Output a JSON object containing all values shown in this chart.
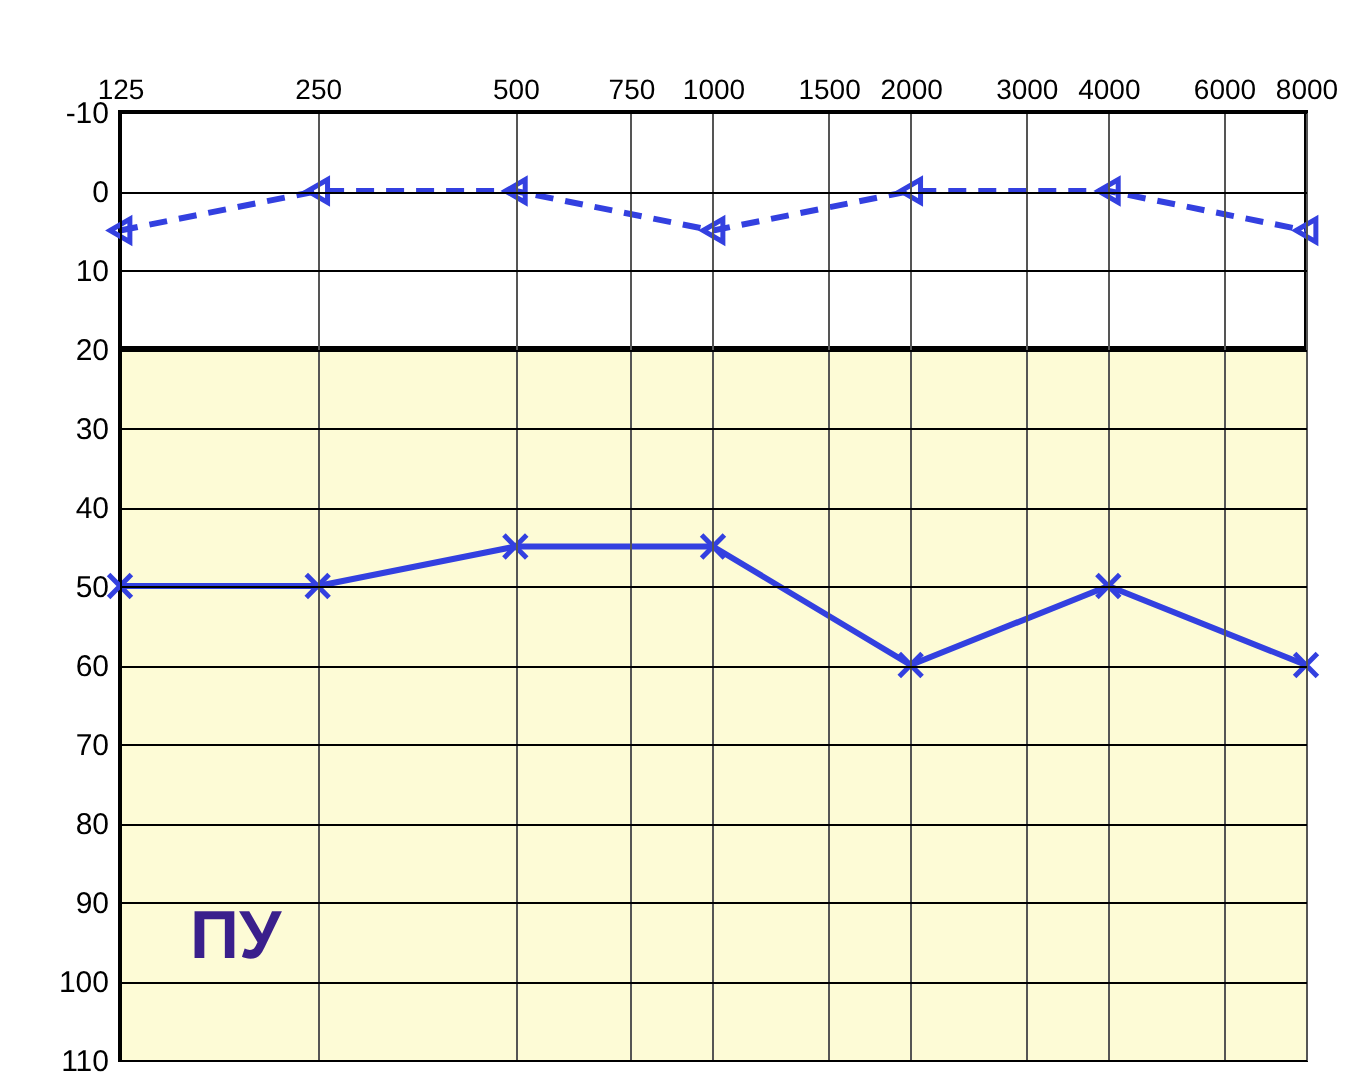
{
  "chart_data": {
    "type": "line",
    "log": "x",
    "xlim": [
      125,
      8000
    ],
    "xticks": [
      125,
      250,
      500,
      750,
      1000,
      1500,
      2000,
      3000,
      4000,
      6000,
      8000
    ],
    "ylim": [
      110,
      -10
    ],
    "yticks": [
      -10,
      0,
      10,
      20,
      30,
      40,
      50,
      60,
      70,
      80,
      90,
      100,
      110
    ],
    "grid": true,
    "x": [
      125,
      250,
      500,
      1000,
      2000,
      4000,
      8000
    ],
    "series": [
      {
        "color": "#3340e0",
        "values": [
          5,
          0,
          0,
          5,
          0,
          0,
          5
        ],
        "line_style": "dashed",
        "marker": "triangle"
      },
      {
        "color": "#3340e0",
        "values": [
          50,
          50,
          45,
          45,
          60,
          50,
          60
        ],
        "line_style": "solid",
        "marker": "cross"
      }
    ],
    "bands": [
      {
        "axis": "y",
        "from": 20,
        "to": 110,
        "color": "#fdfbd6"
      }
    ],
    "ref_lines": [
      {
        "axis": "y",
        "value": 20,
        "color": "#000000"
      }
    ],
    "annotations": [
      "ПУ"
    ]
  }
}
